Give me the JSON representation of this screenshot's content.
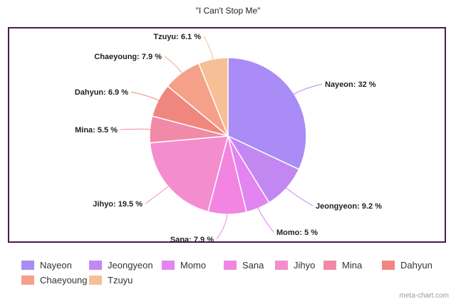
{
  "chart_data": {
    "type": "pie",
    "title": "\"I Can't Stop Me\"",
    "slices": [
      {
        "name": "Nayeon",
        "value": 32,
        "label": "Nayeon: 32 %",
        "color": "#a98cf5"
      },
      {
        "name": "Jeongyeon",
        "value": 9.2,
        "label": "Jeongyeon: 9.2 %",
        "color": "#c387f2"
      },
      {
        "name": "Momo",
        "value": 5,
        "label": "Momo: 5 %",
        "color": "#e285f0"
      },
      {
        "name": "Sana",
        "value": 7.9,
        "label": "Sana: 7.9 %",
        "color": "#f285e2"
      },
      {
        "name": "Jihyo",
        "value": 19.5,
        "label": "Jihyo: 19.5 %",
        "color": "#f38dce"
      },
      {
        "name": "Mina",
        "value": 5.5,
        "label": "Mina: 5.5 %",
        "color": "#f18aa6"
      },
      {
        "name": "Dahyun",
        "value": 6.9,
        "label": "Dahyun: 6.9 %",
        "color": "#f0877e"
      },
      {
        "name": "Chaeyoung",
        "value": 7.9,
        "label": "Chaeyoung: 7.9 %",
        "color": "#f5a088"
      },
      {
        "name": "Tzuyu",
        "value": 6.1,
        "label": "Tzuyu: 6.1 %",
        "color": "#f7bf96"
      }
    ],
    "legend_position": "bottom",
    "start_angle": "12 o'clock",
    "direction": "clockwise"
  },
  "watermark": "meta-chart.com"
}
